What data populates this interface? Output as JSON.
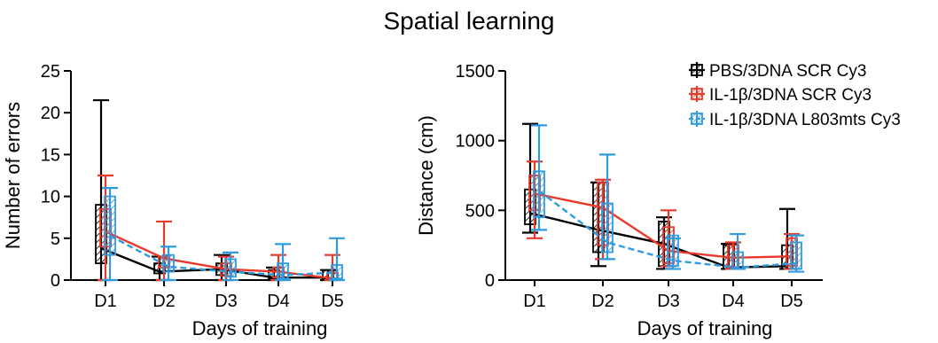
{
  "figure_title": "Spatial learning",
  "colors": {
    "pbs": "#000000",
    "il1b_scr": "#e8392a",
    "il1b_l803": "#2d9be0"
  },
  "legend": [
    {
      "label": "PBS/3DNA SCR Cy3",
      "color": "#000000",
      "dash": false
    },
    {
      "label": "IL-1β/3DNA SCR Cy3",
      "color": "#e8392a",
      "dash": false
    },
    {
      "label": "IL-1β/3DNA L803mts Cy3",
      "color": "#2d9be0",
      "dash": true
    }
  ],
  "chart_data": [
    {
      "type": "box",
      "title": "",
      "xlabel": "Days of training",
      "ylabel": "Number of errors",
      "categories": [
        "D1",
        "D2",
        "D3",
        "D4",
        "D5"
      ],
      "ylim": [
        0,
        25
      ],
      "yticks": [
        0,
        5,
        10,
        15,
        20,
        25
      ],
      "series": [
        {
          "name": "PBS/3DNA SCR Cy3",
          "line": [
            3.8,
            1.0,
            1.3,
            0.3,
            0.3
          ],
          "box_low": [
            2,
            0.8,
            0.6,
            0.2,
            0.2
          ],
          "box_high": [
            9,
            2,
            2,
            1.2,
            1.2
          ],
          "whisker_low": [
            0,
            0,
            0,
            0,
            0
          ],
          "whisker_high": [
            21.5,
            2.8,
            3.0,
            1.5,
            1.2
          ]
        },
        {
          "name": "IL-1β/3DNA SCR Cy3",
          "line": [
            5.8,
            2.6,
            1.3,
            1.0,
            0.2
          ],
          "box_low": [
            4,
            1.5,
            0.5,
            0.3,
            0.2
          ],
          "box_high": [
            8.5,
            2.8,
            2,
            1.5,
            0.9
          ],
          "whisker_low": [
            0,
            0,
            0,
            0,
            0
          ],
          "whisker_high": [
            12.5,
            7.0,
            2.8,
            3.0,
            3.0
          ]
        },
        {
          "name": "IL-1β/3DNA L803mts Cy3",
          "line": [
            5.3,
            1.6,
            1.0,
            0.6,
            0.9
          ],
          "box_low": [
            3,
            1.0,
            0.4,
            0.2,
            0.2
          ],
          "box_high": [
            10,
            3.0,
            2.5,
            2.0,
            1.8
          ],
          "whisker_low": [
            0,
            0,
            0,
            0,
            0
          ],
          "whisker_high": [
            11.0,
            4.0,
            3.3,
            4.3,
            5.0
          ]
        }
      ]
    },
    {
      "type": "box",
      "title": "",
      "xlabel": "Days of training",
      "ylabel": "Distance (cm)",
      "categories": [
        "D1",
        "D2",
        "D3",
        "D4",
        "D5"
      ],
      "ylim": [
        0,
        1500
      ],
      "yticks": [
        0,
        500,
        1000,
        1500
      ],
      "series": [
        {
          "name": "PBS/3DNA SCR Cy3",
          "line": [
            480,
            360,
            260,
            90,
            100
          ],
          "box_low": [
            400,
            200,
            100,
            80,
            80
          ],
          "box_high": [
            650,
            700,
            420,
            250,
            250
          ],
          "whisker_low": [
            340,
            100,
            80,
            80,
            80
          ],
          "whisker_high": [
            1120,
            700,
            450,
            260,
            510
          ]
        },
        {
          "name": "IL-1β/3DNA SCR Cy3",
          "line": [
            620,
            520,
            210,
            160,
            170
          ],
          "box_low": [
            500,
            250,
            120,
            90,
            100
          ],
          "box_high": [
            750,
            700,
            380,
            250,
            300
          ],
          "whisker_low": [
            300,
            150,
            100,
            80,
            80
          ],
          "whisker_high": [
            850,
            720,
            500,
            270,
            330
          ]
        },
        {
          "name": "IL-1β/3DNA L803mts Cy3",
          "line": [
            640,
            270,
            140,
            90,
            120
          ],
          "box_low": [
            450,
            200,
            100,
            80,
            80
          ],
          "box_high": [
            780,
            550,
            320,
            200,
            270
          ],
          "whisker_low": [
            360,
            150,
            80,
            80,
            60
          ],
          "whisker_high": [
            1110,
            900,
            300,
            330,
            320
          ]
        }
      ]
    }
  ]
}
